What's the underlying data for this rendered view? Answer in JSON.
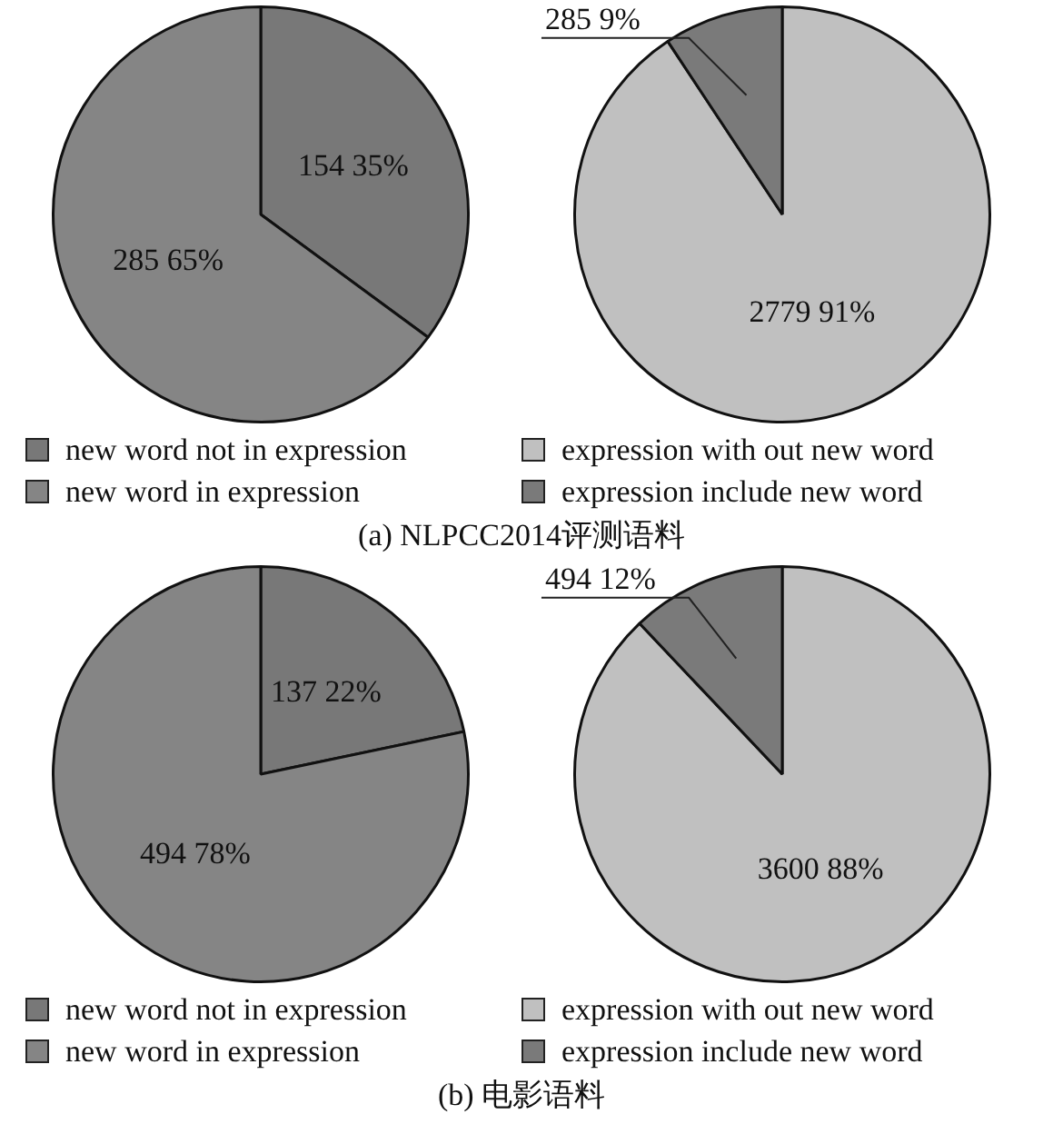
{
  "chart_data": [
    {
      "type": "pie",
      "categories": [
        "new word not in expression",
        "new word in expression"
      ],
      "values": [
        154,
        285
      ],
      "colors": [
        "#787878",
        "#858585"
      ],
      "value_labels": [
        "154 35%",
        "285 65%"
      ],
      "legend": "bottom",
      "annotations": [
        "(a) NLPCC2014评测语料"
      ]
    },
    {
      "type": "pie",
      "categories": [
        "expression with out new word",
        "expression include new word"
      ],
      "values": [
        2779,
        285
      ],
      "colors": [
        "#c0c0c0",
        "#7a7a7a"
      ],
      "value_labels": [
        "2779 91%",
        "285 9%"
      ],
      "legend": "bottom"
    },
    {
      "type": "pie",
      "categories": [
        "new word not in expression",
        "new word in expression"
      ],
      "values": [
        137,
        494
      ],
      "colors": [
        "#787878",
        "#858585"
      ],
      "value_labels": [
        "137 22%",
        "494 78%"
      ],
      "legend": "bottom",
      "annotations": [
        "(b) 电影语料"
      ]
    },
    {
      "type": "pie",
      "categories": [
        "expression with out new word",
        "expression include new word"
      ],
      "values": [
        3600,
        494
      ],
      "colors": [
        "#c0c0c0",
        "#7a7a7a"
      ],
      "value_labels": [
        "3600 88%",
        "494 12%"
      ],
      "legend": "bottom"
    }
  ]
}
